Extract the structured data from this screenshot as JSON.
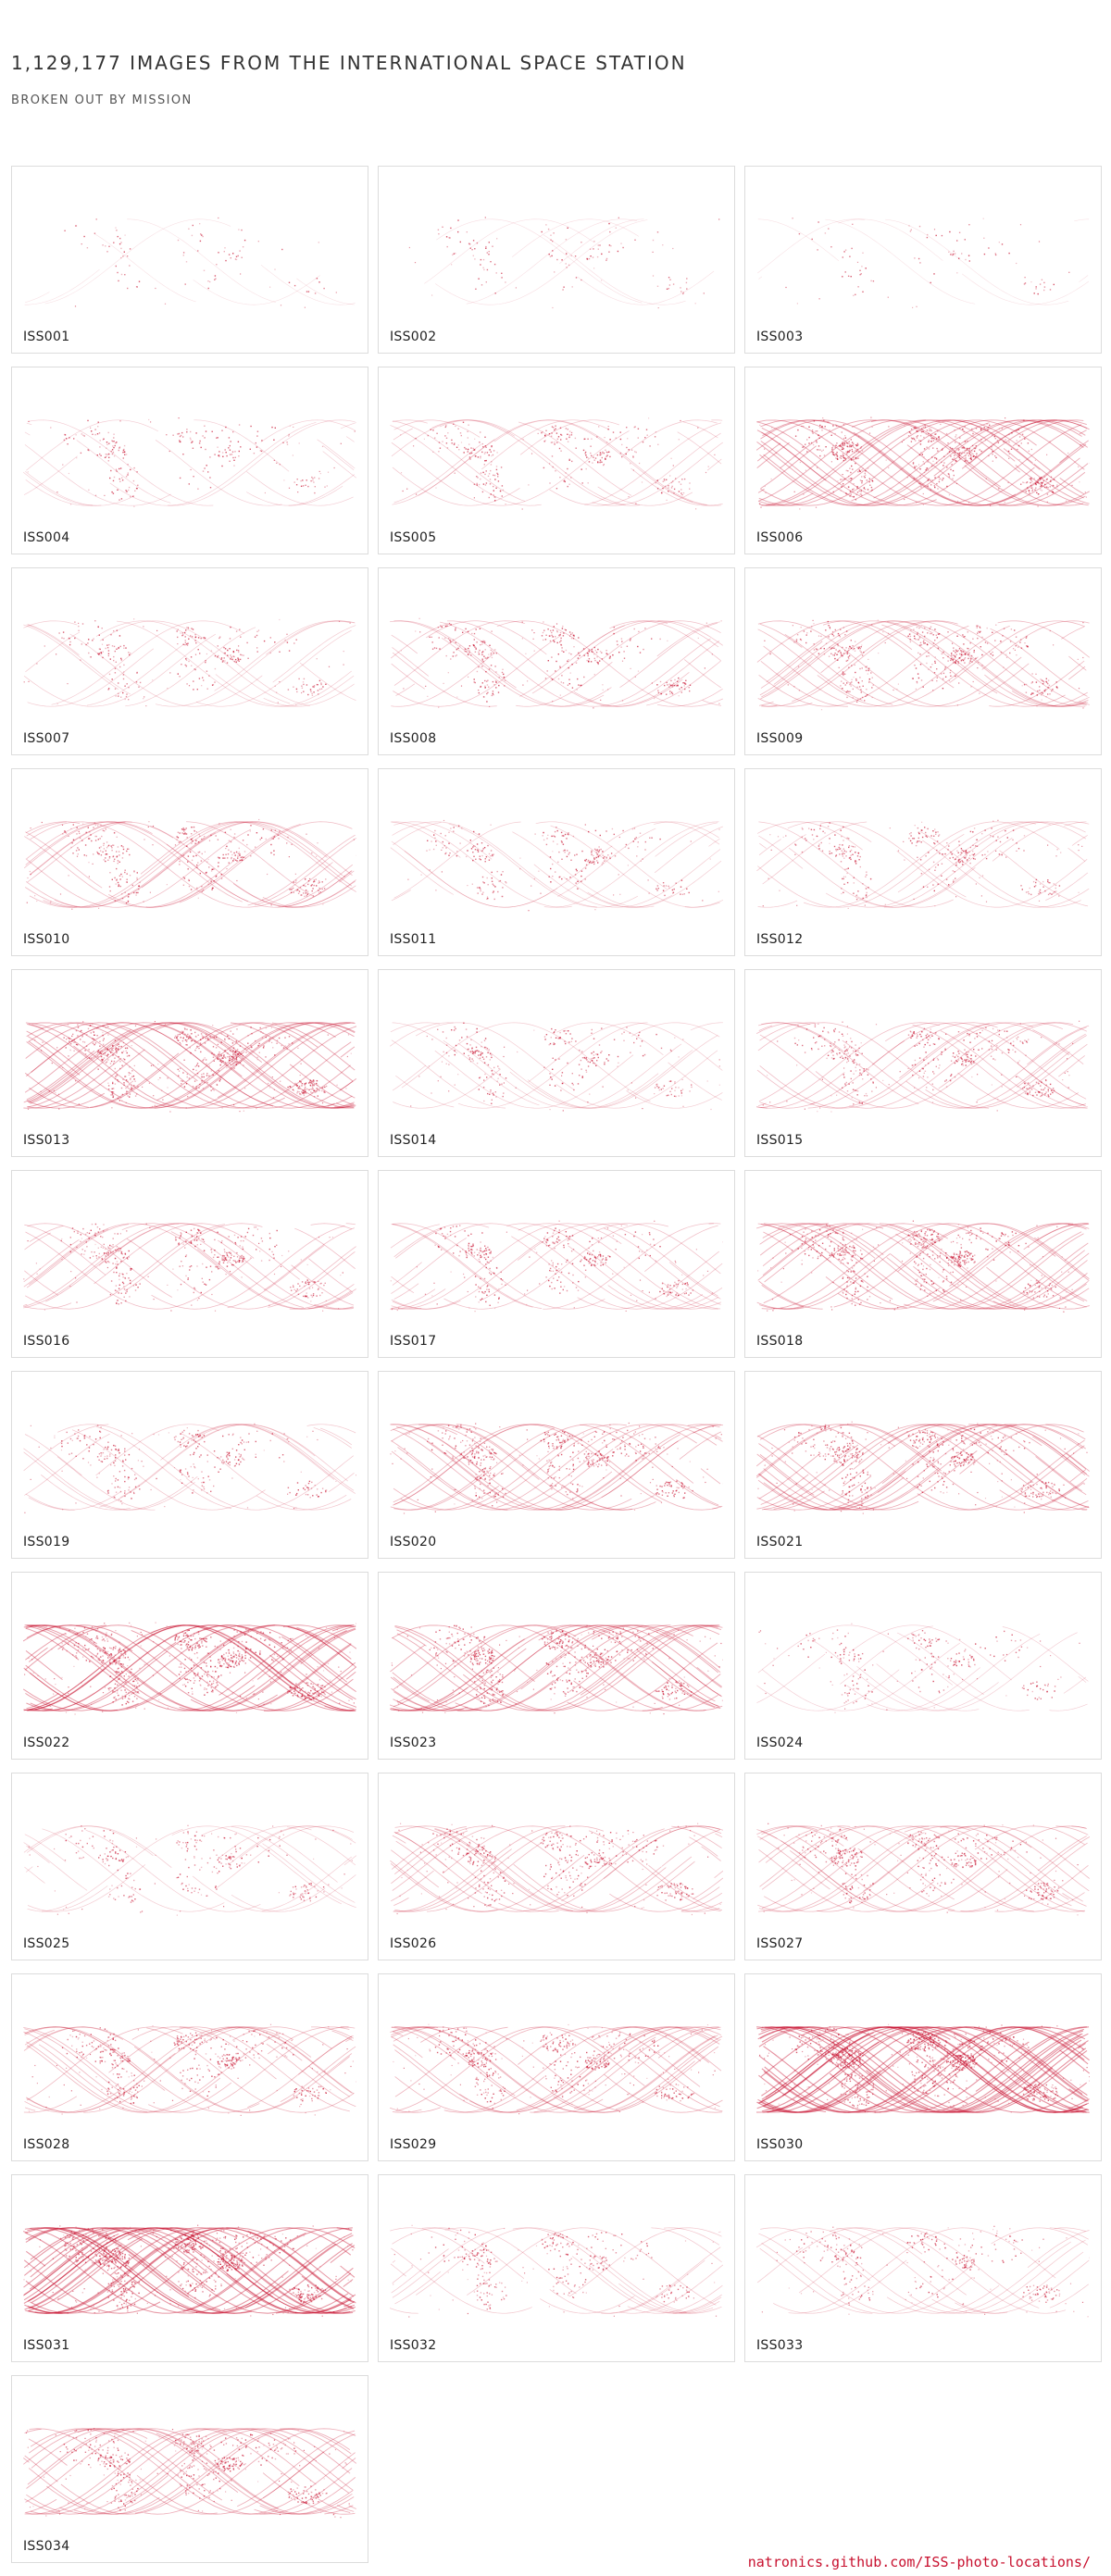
{
  "header": {
    "title": "1,129,177 IMAGES FROM THE INTERNATIONAL SPACE STATION",
    "subtitle": "BROKEN OUT BY MISSION"
  },
  "accent_color": "#c8102e",
  "missions": [
    {
      "name": "ISS001",
      "intensity": 0.05
    },
    {
      "name": "ISS002",
      "intensity": 0.1
    },
    {
      "name": "ISS003",
      "intensity": 0.05
    },
    {
      "name": "ISS004",
      "intensity": 0.25
    },
    {
      "name": "ISS005",
      "intensity": 0.35
    },
    {
      "name": "ISS006",
      "intensity": 0.7
    },
    {
      "name": "ISS007",
      "intensity": 0.3
    },
    {
      "name": "ISS008",
      "intensity": 0.4
    },
    {
      "name": "ISS009",
      "intensity": 0.5
    },
    {
      "name": "ISS010",
      "intensity": 0.45
    },
    {
      "name": "ISS011",
      "intensity": 0.3
    },
    {
      "name": "ISS012",
      "intensity": 0.35
    },
    {
      "name": "ISS013",
      "intensity": 0.7
    },
    {
      "name": "ISS014",
      "intensity": 0.3
    },
    {
      "name": "ISS015",
      "intensity": 0.45
    },
    {
      "name": "ISS016",
      "intensity": 0.45
    },
    {
      "name": "ISS017",
      "intensity": 0.4
    },
    {
      "name": "ISS018",
      "intensity": 0.6
    },
    {
      "name": "ISS019",
      "intensity": 0.35
    },
    {
      "name": "ISS020",
      "intensity": 0.55
    },
    {
      "name": "ISS021",
      "intensity": 0.6
    },
    {
      "name": "ISS022",
      "intensity": 0.8
    },
    {
      "name": "ISS023",
      "intensity": 0.65
    },
    {
      "name": "ISS024",
      "intensity": 0.25
    },
    {
      "name": "ISS025",
      "intensity": 0.3
    },
    {
      "name": "ISS026",
      "intensity": 0.5
    },
    {
      "name": "ISS027",
      "intensity": 0.5
    },
    {
      "name": "ISS028",
      "intensity": 0.5
    },
    {
      "name": "ISS029",
      "intensity": 0.55
    },
    {
      "name": "ISS030",
      "intensity": 0.95
    },
    {
      "name": "ISS031",
      "intensity": 0.9
    },
    {
      "name": "ISS032",
      "intensity": 0.35
    },
    {
      "name": "ISS033",
      "intensity": 0.35
    },
    {
      "name": "ISS034",
      "intensity": 0.6
    }
  ],
  "footer": {
    "link_text": "natronics.github.com/ISS-photo-locations/"
  }
}
